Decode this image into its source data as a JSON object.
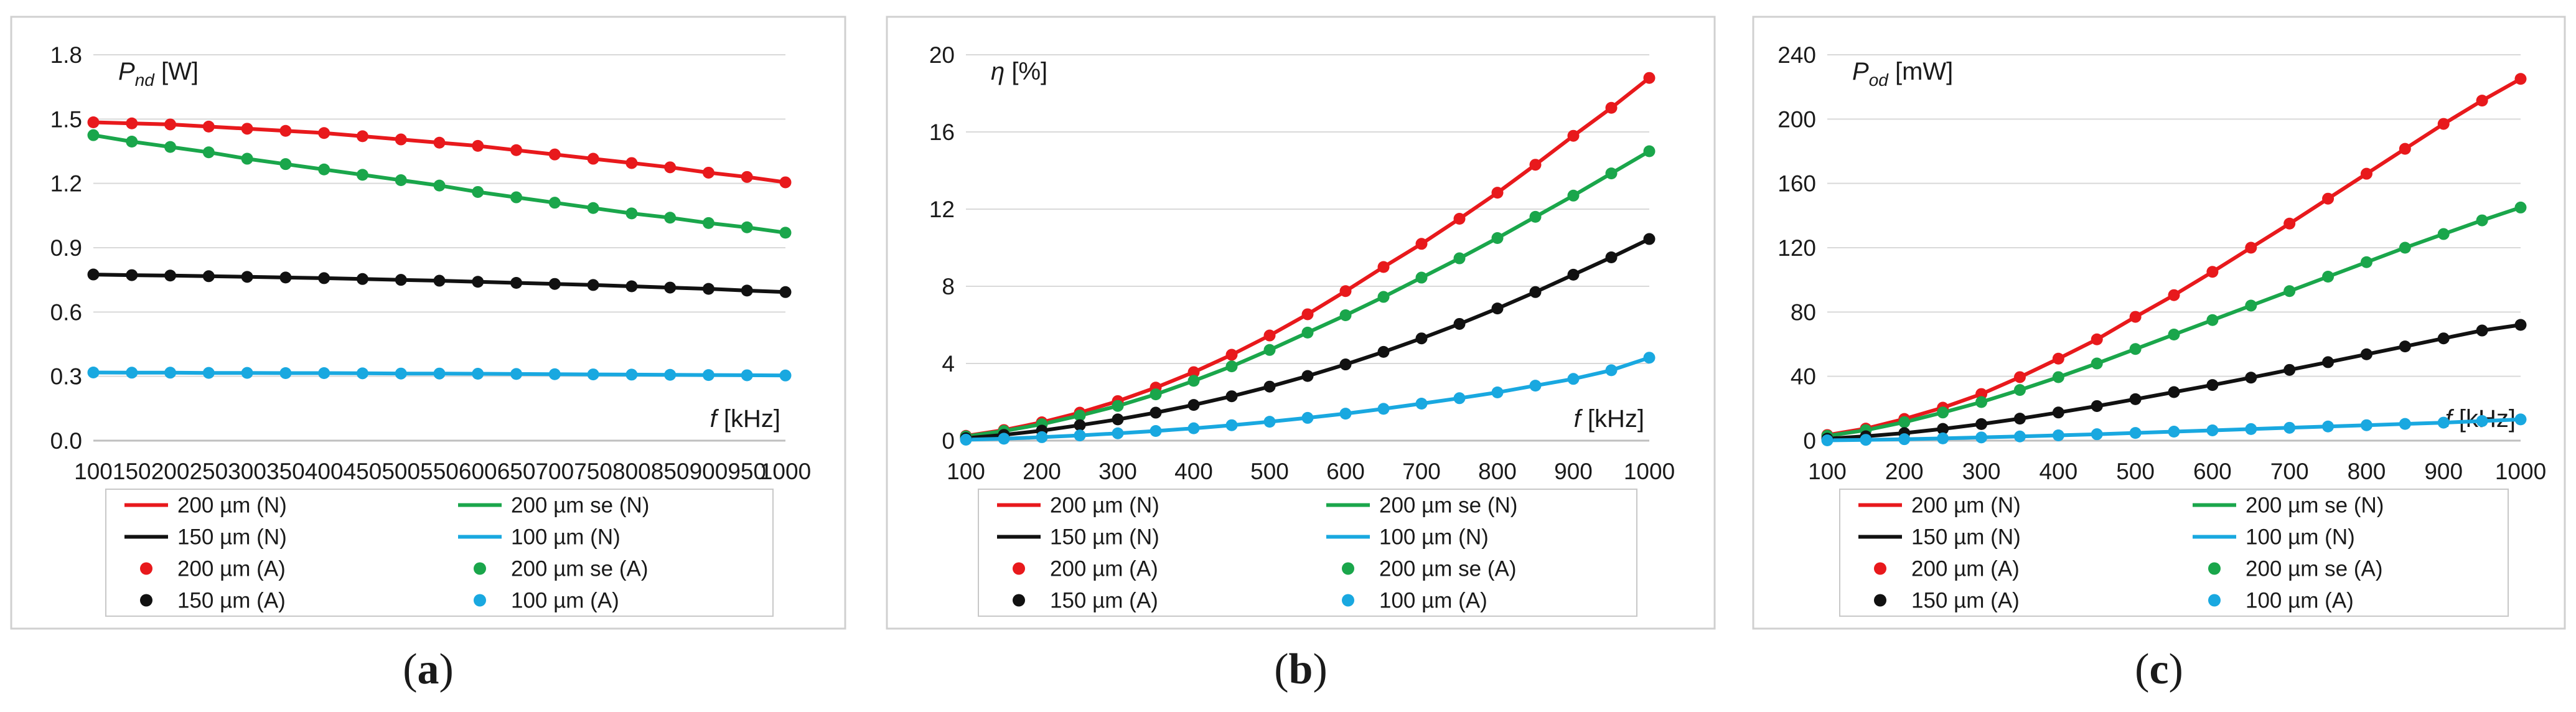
{
  "x_unit_label": "[kHz]",
  "chart_data": [
    {
      "type": "line",
      "caption": "a",
      "ylabel_symbol": "P",
      "ylabel_sub": "nd",
      "ylabel_unit": "[W]",
      "xlabel_symbol": "f",
      "xlabel_unit": "[kHz]",
      "xlim": [
        100,
        1000
      ],
      "ylim": [
        0,
        1.8
      ],
      "xticks": [
        "100",
        "150",
        "200",
        "250",
        "300",
        "350",
        "400",
        "450",
        "500",
        "550",
        "600",
        "650",
        "700",
        "750",
        "800",
        "850",
        "900",
        "950",
        "1000"
      ],
      "yticks": [
        "0.0",
        "0.3",
        "0.6",
        "0.9",
        "1.2",
        "1.5",
        "1.8"
      ],
      "x": [
        100,
        150,
        200,
        250,
        300,
        350,
        400,
        450,
        500,
        550,
        600,
        650,
        700,
        750,
        800,
        850,
        900,
        950,
        1000
      ],
      "series": [
        {
          "name": "200 µm (N)",
          "color": "#e8191c",
          "values": [
            1.485,
            1.48,
            1.475,
            1.465,
            1.455,
            1.445,
            1.435,
            1.42,
            1.405,
            1.39,
            1.375,
            1.355,
            1.335,
            1.315,
            1.295,
            1.275,
            1.25,
            1.23,
            1.205
          ]
        },
        {
          "name": "200 µm se (N)",
          "color": "#1aa64b",
          "values": [
            1.425,
            1.395,
            1.37,
            1.345,
            1.315,
            1.29,
            1.265,
            1.24,
            1.215,
            1.19,
            1.16,
            1.135,
            1.11,
            1.085,
            1.06,
            1.04,
            1.015,
            0.995,
            0.97
          ]
        },
        {
          "name": "150 µm (N)",
          "color": "#111111",
          "values": [
            0.775,
            0.772,
            0.77,
            0.767,
            0.764,
            0.761,
            0.758,
            0.754,
            0.75,
            0.746,
            0.741,
            0.736,
            0.731,
            0.726,
            0.72,
            0.714,
            0.708,
            0.7,
            0.693
          ]
        },
        {
          "name": "100 µm (N)",
          "color": "#19a8e0",
          "values": [
            0.318,
            0.317,
            0.317,
            0.316,
            0.316,
            0.315,
            0.315,
            0.314,
            0.313,
            0.313,
            0.312,
            0.311,
            0.31,
            0.309,
            0.308,
            0.307,
            0.306,
            0.305,
            0.304
          ]
        }
      ]
    },
    {
      "type": "line",
      "caption": "b",
      "ylabel_symbol": "η",
      "ylabel_sub": "",
      "ylabel_unit": "[%]",
      "xlabel_symbol": "f",
      "xlabel_unit": "[kHz]",
      "xlim": [
        100,
        1000
      ],
      "ylim": [
        0,
        20
      ],
      "xticks": [
        "100",
        "200",
        "300",
        "400",
        "500",
        "600",
        "700",
        "800",
        "900",
        "1000"
      ],
      "yticks": [
        "0",
        "4",
        "8",
        "12",
        "16",
        "20"
      ],
      "x": [
        100,
        150,
        200,
        250,
        300,
        350,
        400,
        450,
        500,
        550,
        600,
        650,
        700,
        750,
        800,
        850,
        900,
        950,
        1000
      ],
      "series": [
        {
          "name": "200 µm (N)",
          "color": "#e8191c",
          "values": [
            0.25,
            0.55,
            0.95,
            1.45,
            2.05,
            2.75,
            3.55,
            4.45,
            5.45,
            6.55,
            7.75,
            9.0,
            10.2,
            11.5,
            12.85,
            14.3,
            15.8,
            17.25,
            18.8
          ]
        },
        {
          "name": "200 µm se (N)",
          "color": "#1aa64b",
          "values": [
            0.22,
            0.5,
            0.85,
            1.3,
            1.8,
            2.4,
            3.1,
            3.85,
            4.7,
            5.6,
            6.5,
            7.45,
            8.45,
            9.45,
            10.5,
            11.6,
            12.7,
            13.85,
            15.0
          ]
        },
        {
          "name": "150 µm (N)",
          "color": "#111111",
          "values": [
            0.13,
            0.3,
            0.52,
            0.8,
            1.1,
            1.45,
            1.85,
            2.3,
            2.8,
            3.35,
            3.95,
            4.6,
            5.3,
            6.05,
            6.85,
            7.7,
            8.6,
            9.5,
            10.45
          ]
        },
        {
          "name": "100 µm (N)",
          "color": "#19a8e0",
          "values": [
            0.05,
            0.1,
            0.18,
            0.27,
            0.38,
            0.5,
            0.64,
            0.8,
            0.98,
            1.18,
            1.4,
            1.65,
            1.92,
            2.2,
            2.5,
            2.85,
            3.2,
            3.65,
            4.3
          ]
        }
      ]
    },
    {
      "type": "line",
      "caption": "c",
      "ylabel_symbol": "P",
      "ylabel_sub": "od",
      "ylabel_unit": "[mW]",
      "xlabel_symbol": "f",
      "xlabel_unit": "[kHz]",
      "xlim": [
        100,
        1000
      ],
      "ylim": [
        0,
        240
      ],
      "xticks": [
        "100",
        "200",
        "300",
        "400",
        "500",
        "600",
        "700",
        "800",
        "900",
        "1000"
      ],
      "yticks": [
        "0",
        "40",
        "80",
        "120",
        "160",
        "200",
        "240"
      ],
      "x": [
        100,
        150,
        200,
        250,
        300,
        350,
        400,
        450,
        500,
        550,
        600,
        650,
        700,
        750,
        800,
        850,
        900,
        950,
        1000
      ],
      "series": [
        {
          "name": "200 µm (N)",
          "color": "#e8191c",
          "values": [
            3.5,
            7.5,
            13.5,
            20.5,
            29,
            39.5,
            51,
            63,
            77,
            90.5,
            105,
            120,
            135,
            150.5,
            166,
            181.5,
            197,
            211.5,
            225
          ]
        },
        {
          "name": "200 µm se (N)",
          "color": "#1aa64b",
          "values": [
            3,
            6.5,
            11.5,
            17.5,
            24,
            31.5,
            39.5,
            48,
            57,
            66,
            75,
            84,
            93,
            102,
            111,
            120,
            128.5,
            137,
            145
          ]
        },
        {
          "name": "150 µm (N)",
          "color": "#111111",
          "values": [
            1.2,
            2.7,
            4.7,
            7.3,
            10.3,
            13.7,
            17.5,
            21.5,
            25.8,
            30.2,
            34.6,
            39.2,
            44,
            48.8,
            53.7,
            58.6,
            63.6,
            68.5,
            72
          ]
        },
        {
          "name": "100 µm (N)",
          "color": "#19a8e0",
          "values": [
            0.2,
            0.5,
            0.9,
            1.4,
            2.0,
            2.6,
            3.3,
            4.0,
            4.8,
            5.6,
            6.4,
            7.2,
            8.0,
            8.8,
            9.6,
            10.4,
            11.2,
            12.2,
            13.2
          ]
        }
      ]
    }
  ],
  "legend": [
    {
      "label": "200 µm (N)",
      "kind": "line",
      "color": "#e8191c"
    },
    {
      "label": "200 µm se (N)",
      "kind": "line",
      "color": "#1aa64b"
    },
    {
      "label": "150 µm (N)",
      "kind": "line",
      "color": "#111111"
    },
    {
      "label": "100 µm (N)",
      "kind": "line",
      "color": "#19a8e0"
    },
    {
      "label": "200 µm (A)",
      "kind": "marker",
      "color": "#e8191c"
    },
    {
      "label": "200 µm se (A)",
      "kind": "marker",
      "color": "#1aa64b"
    },
    {
      "label": "150 µm (A)",
      "kind": "marker",
      "color": "#111111"
    },
    {
      "label": "100 µm (A)",
      "kind": "marker",
      "color": "#19a8e0"
    }
  ],
  "colors": {
    "frame": "#d0d0d0",
    "grid": "#d9d9d9",
    "text": "#1a1a1a"
  }
}
